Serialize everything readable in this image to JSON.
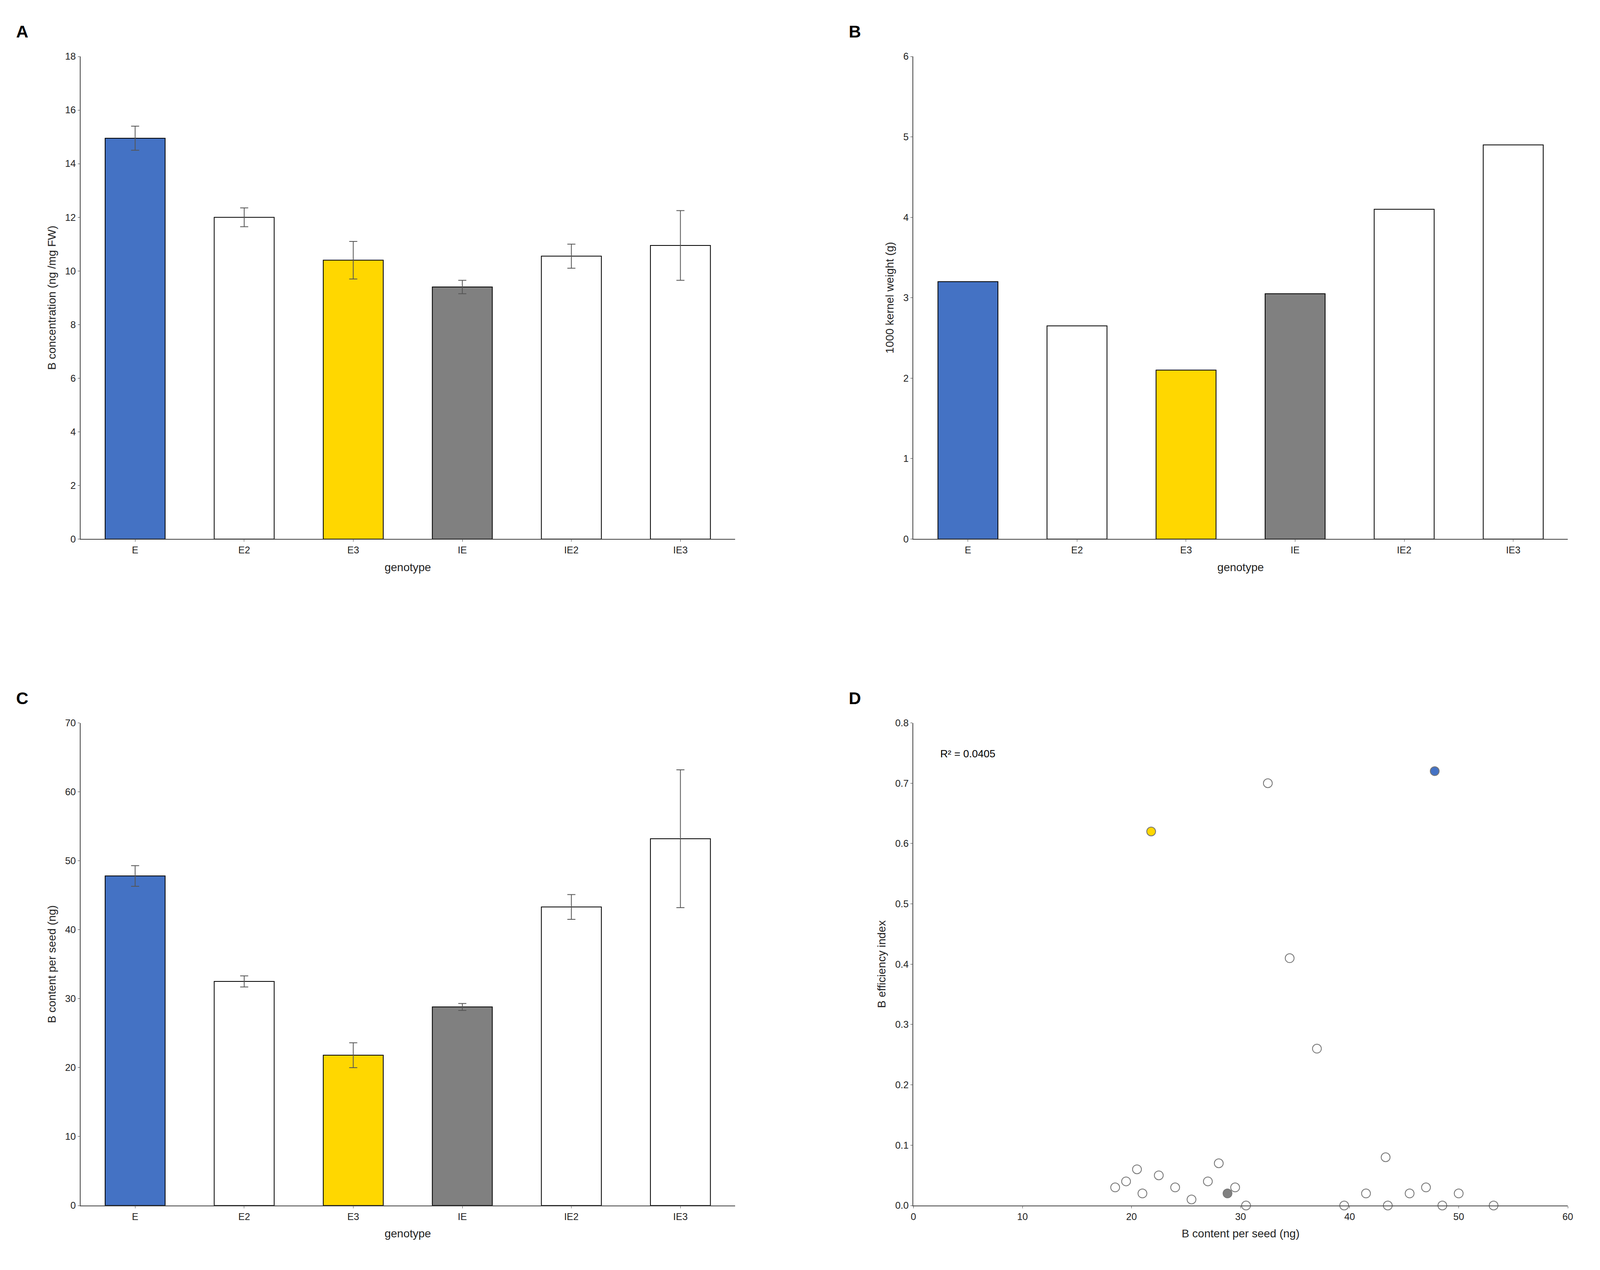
{
  "chart_data": [
    {
      "type": "bar",
      "title": "A",
      "categories": [
        "E",
        "E2",
        "E3",
        "IE",
        "IE2",
        "IE3"
      ],
      "values": [
        14.95,
        12.0,
        10.4,
        9.4,
        10.55,
        10.95
      ],
      "errors": [
        0.45,
        0.35,
        0.7,
        0.25,
        0.45,
        1.3
      ],
      "colors": [
        "#4472C4",
        "#ffffff",
        "#FFD700",
        "#808080",
        "#ffffff",
        "#ffffff"
      ],
      "xlabel": "genotype",
      "ylabel": "B concentration (ng /mg FW)",
      "ylim": [
        0,
        18
      ],
      "yticks": [
        0,
        2,
        4,
        6,
        8,
        10,
        12,
        14,
        16,
        18
      ],
      "grid": false
    },
    {
      "type": "bar",
      "title": "B",
      "categories": [
        "E",
        "E2",
        "E3",
        "IE",
        "IE2",
        "IE3"
      ],
      "values": [
        3.2,
        2.65,
        2.1,
        3.05,
        4.1,
        4.9
      ],
      "colors": [
        "#4472C4",
        "#ffffff",
        "#FFD700",
        "#808080",
        "#ffffff",
        "#ffffff"
      ],
      "xlabel": "genotype",
      "ylabel": "1000 kernel weight (g)",
      "ylim": [
        0,
        6
      ],
      "yticks": [
        0,
        1,
        2,
        3,
        4,
        5,
        6
      ],
      "grid": false
    },
    {
      "type": "bar",
      "title": "C",
      "categories": [
        "E",
        "E2",
        "E3",
        "IE",
        "IE2",
        "IE3"
      ],
      "values": [
        47.8,
        32.5,
        21.8,
        28.8,
        43.3,
        53.2
      ],
      "errors": [
        1.5,
        0.8,
        1.8,
        0.5,
        1.8,
        10.0
      ],
      "colors": [
        "#4472C4",
        "#ffffff",
        "#FFD700",
        "#808080",
        "#ffffff",
        "#ffffff"
      ],
      "xlabel": "genotype",
      "ylabel": "B content per seed (ng)",
      "ylim": [
        0,
        70
      ],
      "yticks": [
        0,
        10,
        20,
        30,
        40,
        50,
        60,
        70
      ],
      "grid": false
    },
    {
      "type": "scatter",
      "title": "D",
      "x": [
        47.8,
        28.8,
        21.8,
        32.5,
        43.3,
        53.2,
        18.5,
        19.5,
        20.5,
        21.0,
        22.5,
        24.0,
        25.5,
        27.0,
        28.0,
        29.5,
        30.5,
        34.5,
        37.0,
        39.5,
        41.5,
        43.5,
        45.5,
        47.0,
        48.5,
        50.0
      ],
      "values": [
        0.72,
        0.02,
        0.62,
        0.7,
        0.08,
        0.0,
        0.03,
        0.04,
        0.06,
        0.02,
        0.05,
        0.03,
        0.01,
        0.04,
        0.07,
        0.03,
        0.0,
        0.41,
        0.26,
        0.0,
        0.02,
        0.0,
        0.02,
        0.03,
        0.0,
        0.02
      ],
      "colors": [
        "#4472C4",
        "#808080",
        "#FFD700",
        "#ffffff",
        "#ffffff",
        "#ffffff",
        "#ffffff",
        "#ffffff",
        "#ffffff",
        "#ffffff",
        "#ffffff",
        "#ffffff",
        "#ffffff",
        "#ffffff",
        "#ffffff",
        "#ffffff",
        "#ffffff",
        "#ffffff",
        "#ffffff",
        "#ffffff",
        "#ffffff",
        "#ffffff",
        "#ffffff",
        "#ffffff",
        "#ffffff",
        "#ffffff"
      ],
      "xlabel": "B content per seed (ng)",
      "ylabel": "B efficiency index",
      "xlim": [
        0,
        60
      ],
      "xticks": [
        0,
        10,
        20,
        30,
        40,
        50,
        60
      ],
      "ylim": [
        0,
        0.8
      ],
      "yticks": [
        {
          "value": 0,
          "label": "0.0"
        },
        0.1,
        0.2,
        0.3,
        0.4,
        0.5,
        0.6,
        0.7,
        0.8
      ],
      "annotations": [
        "R² = 0.0405"
      ],
      "grid": false
    }
  ]
}
